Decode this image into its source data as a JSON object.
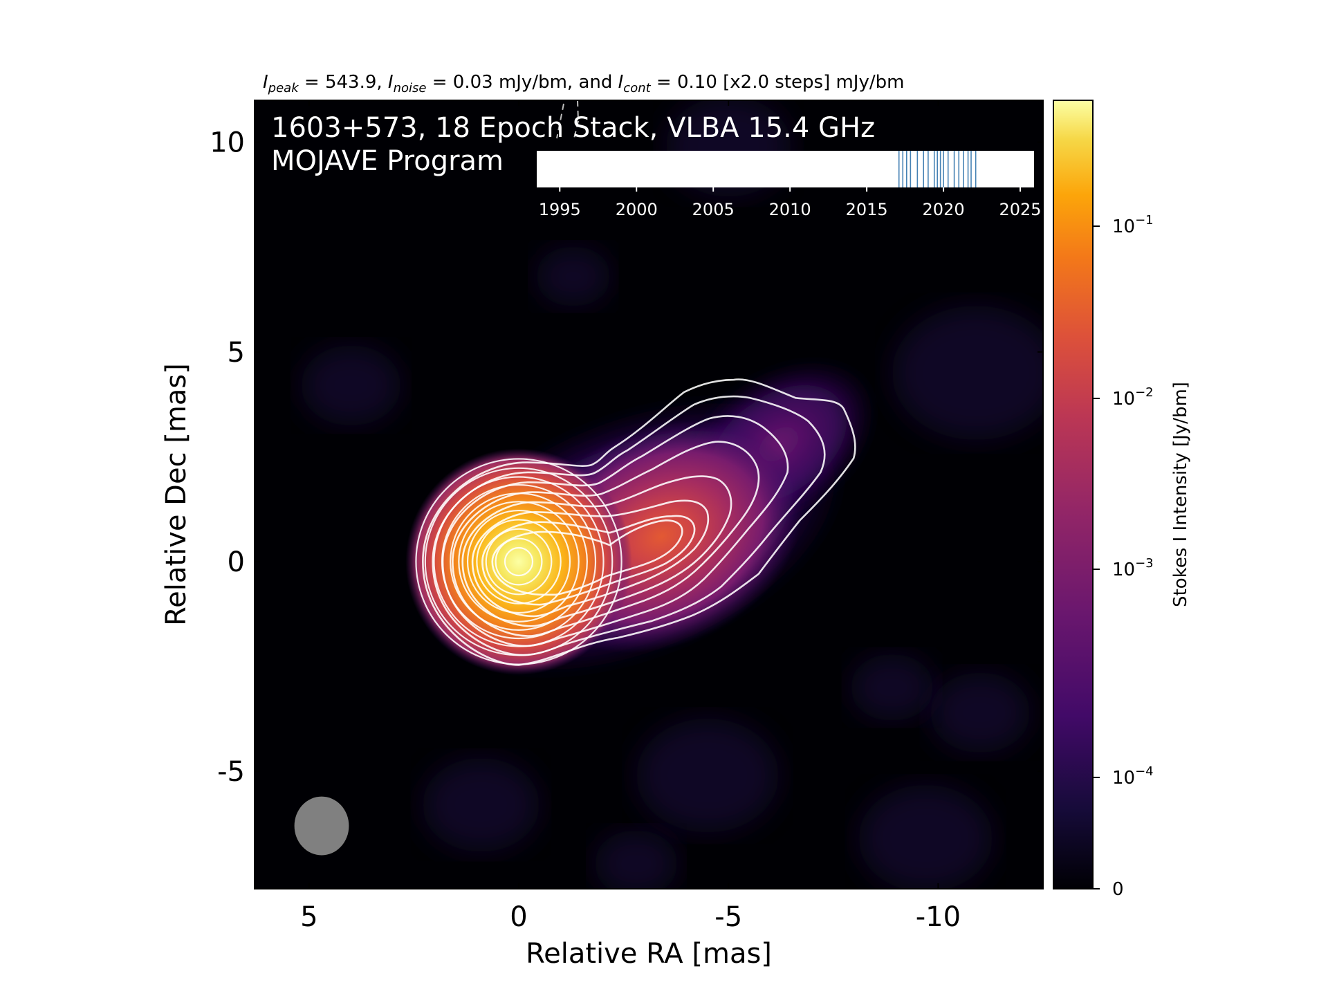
{
  "chart_data": {
    "type": "heatmap",
    "header_title": {
      "i_peak": "I",
      "i_peak_sub": "peak",
      "i_peak_text": " = 543.9, ",
      "i_noise": "I",
      "i_noise_sub": "noise",
      "i_noise_text": " = 0.03 mJy/bm, and ",
      "i_cont": "I",
      "i_cont_sub": "cont",
      "i_cont_text": " = 0.10 [x2.0 steps] mJy/bm"
    },
    "overlay_title_line1": "1603+573, 18 Epoch Stack, VLBA 15.4 GHz",
    "overlay_title_line2": "MOJAVE Program",
    "xlabel": "Relative RA [mas]",
    "ylabel": "Relative Dec [mas]",
    "xlim": [
      6.3,
      -12.5
    ],
    "ylim": [
      -7.8,
      11.0
    ],
    "x_ticks": [
      5,
      0,
      -5,
      -10
    ],
    "y_ticks": [
      10,
      5,
      0,
      -5
    ],
    "x_tick_labels": [
      "5",
      "0",
      "-5",
      "-10"
    ],
    "y_tick_labels": [
      "10",
      "5",
      "0",
      "-5"
    ],
    "peak_intensity_mJy_per_beam": 543.9,
    "noise_mJy_per_beam": 0.03,
    "lowest_contour_mJy_per_beam": 0.1,
    "contour_step_factor": 2.0,
    "components": [
      {
        "name": "core",
        "ra": 0.0,
        "dec": 0.0,
        "relative_peak": 1.0
      },
      {
        "name": "jet",
        "ra": -3.4,
        "dec": 0.6,
        "relative_peak": 0.018
      }
    ],
    "beam": {
      "ra": 4.7,
      "dec": -6.3,
      "major_mas": 1.4,
      "minor_mas": 1.3
    },
    "colorbar": {
      "label": "Stokes I Intensity [Jy/bm]",
      "scale": "log",
      "tick_labels": [
        {
          "base": "10",
          "exp": "−1",
          "value": 0.1
        },
        {
          "base": "10",
          "exp": "−2",
          "value": 0.01
        },
        {
          "base": "10",
          "exp": "−3",
          "value": 0.001
        },
        {
          "base": "10",
          "exp": "−4",
          "value": 0.0001
        },
        {
          "base": "0",
          "exp": "",
          "value": 0
        }
      ],
      "colormap": "inferno"
    },
    "epoch_timeline": {
      "xlim": [
        1993.5,
        2025.9
      ],
      "ticks": [
        1995,
        2000,
        2005,
        2010,
        2015,
        2020,
        2025
      ],
      "tick_labels": [
        "1995",
        "2000",
        "2005",
        "2010",
        "2015",
        "2020",
        "2025"
      ],
      "epochs": [
        2017.1,
        2017.35,
        2017.6,
        2017.85,
        2018.3,
        2018.7,
        2019.0,
        2019.4,
        2019.6,
        2019.8,
        2020.0,
        2020.3,
        2020.7,
        2021.0,
        2021.3,
        2021.6,
        2021.8,
        2022.1
      ],
      "line_color": "#4682b4"
    }
  }
}
